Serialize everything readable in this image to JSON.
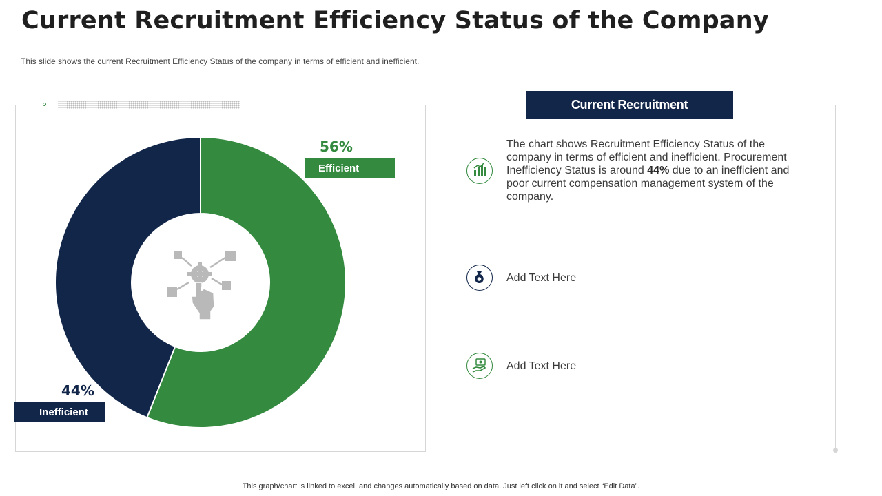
{
  "title": "Current Recruitment Efficiency Status of the Company",
  "subtitle": "This slide shows the current Recruitment Efficiency Status of the company in terms of efficient and inefficient.",
  "chart_data": {
    "type": "pie",
    "variant": "donut",
    "categories": [
      "Efficient",
      "Inefficient"
    ],
    "values": [
      56,
      44
    ],
    "value_labels": [
      "56%",
      "44%"
    ],
    "colors": [
      "#348a3f",
      "#12264a"
    ]
  },
  "panel": {
    "header": "Current Recruitment",
    "paragraph_part1": "The chart shows Recruitment Efficiency Status of the company in terms of efficient and inefficient. Procurement Inefficiency Status is around ",
    "paragraph_bold": "44%",
    "paragraph_part2": " due to an inefficient and poor current compensation management system of the company.",
    "items": [
      {
        "icon": "bar-chart-icon"
      },
      {
        "icon": "money-bag-icon",
        "text": "Add Text Here"
      },
      {
        "icon": "cash-hand-icon",
        "text": "Add Text Here"
      }
    ]
  },
  "center_icon": "hand-gear-network-icon",
  "footer": "This graph/chart is linked to excel,  and changes automatically based on data. Just left click on it and select “Edit Data”."
}
